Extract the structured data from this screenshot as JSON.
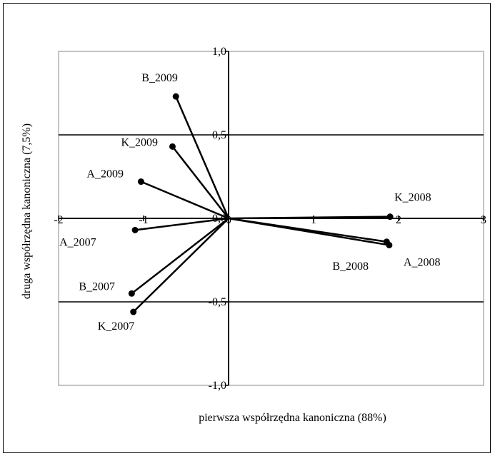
{
  "chart_data": {
    "type": "scatter",
    "title": "",
    "xlabel": "pierwsza współrzędna kanoniczna (88%)",
    "ylabel": "druga współrzędna kanoniczna (7,5%)",
    "xlim": [
      -2,
      3
    ],
    "ylim": [
      -1.0,
      1.0
    ],
    "x_ticks": [
      "-2",
      "-1",
      "0",
      "1",
      "2",
      "3"
    ],
    "y_ticks": [
      "1,0",
      "0,5",
      "0,0",
      "-0,5",
      "-1,0"
    ],
    "y_tick_values": [
      1.0,
      0.5,
      0.0,
      -0.5,
      -1.0
    ],
    "x_tick_values": [
      -2,
      -1,
      0,
      1,
      2,
      3
    ],
    "grid": "horizontal",
    "vectors_from_origin": true,
    "points": [
      {
        "label": "B_2009",
        "x": -0.62,
        "y": 0.73
      },
      {
        "label": "K_2009",
        "x": -0.66,
        "y": 0.43
      },
      {
        "label": "A_2009",
        "x": -1.03,
        "y": 0.22
      },
      {
        "label": "A_2007",
        "x": -1.1,
        "y": -0.07
      },
      {
        "label": "B_2007",
        "x": -1.14,
        "y": -0.45
      },
      {
        "label": "K_2007",
        "x": -1.12,
        "y": -0.56
      },
      {
        "label": "K_2008",
        "x": 1.9,
        "y": 0.01
      },
      {
        "label": "B_2008",
        "x": 1.86,
        "y": -0.14
      },
      {
        "label": "A_2008",
        "x": 1.89,
        "y": -0.16
      }
    ]
  }
}
